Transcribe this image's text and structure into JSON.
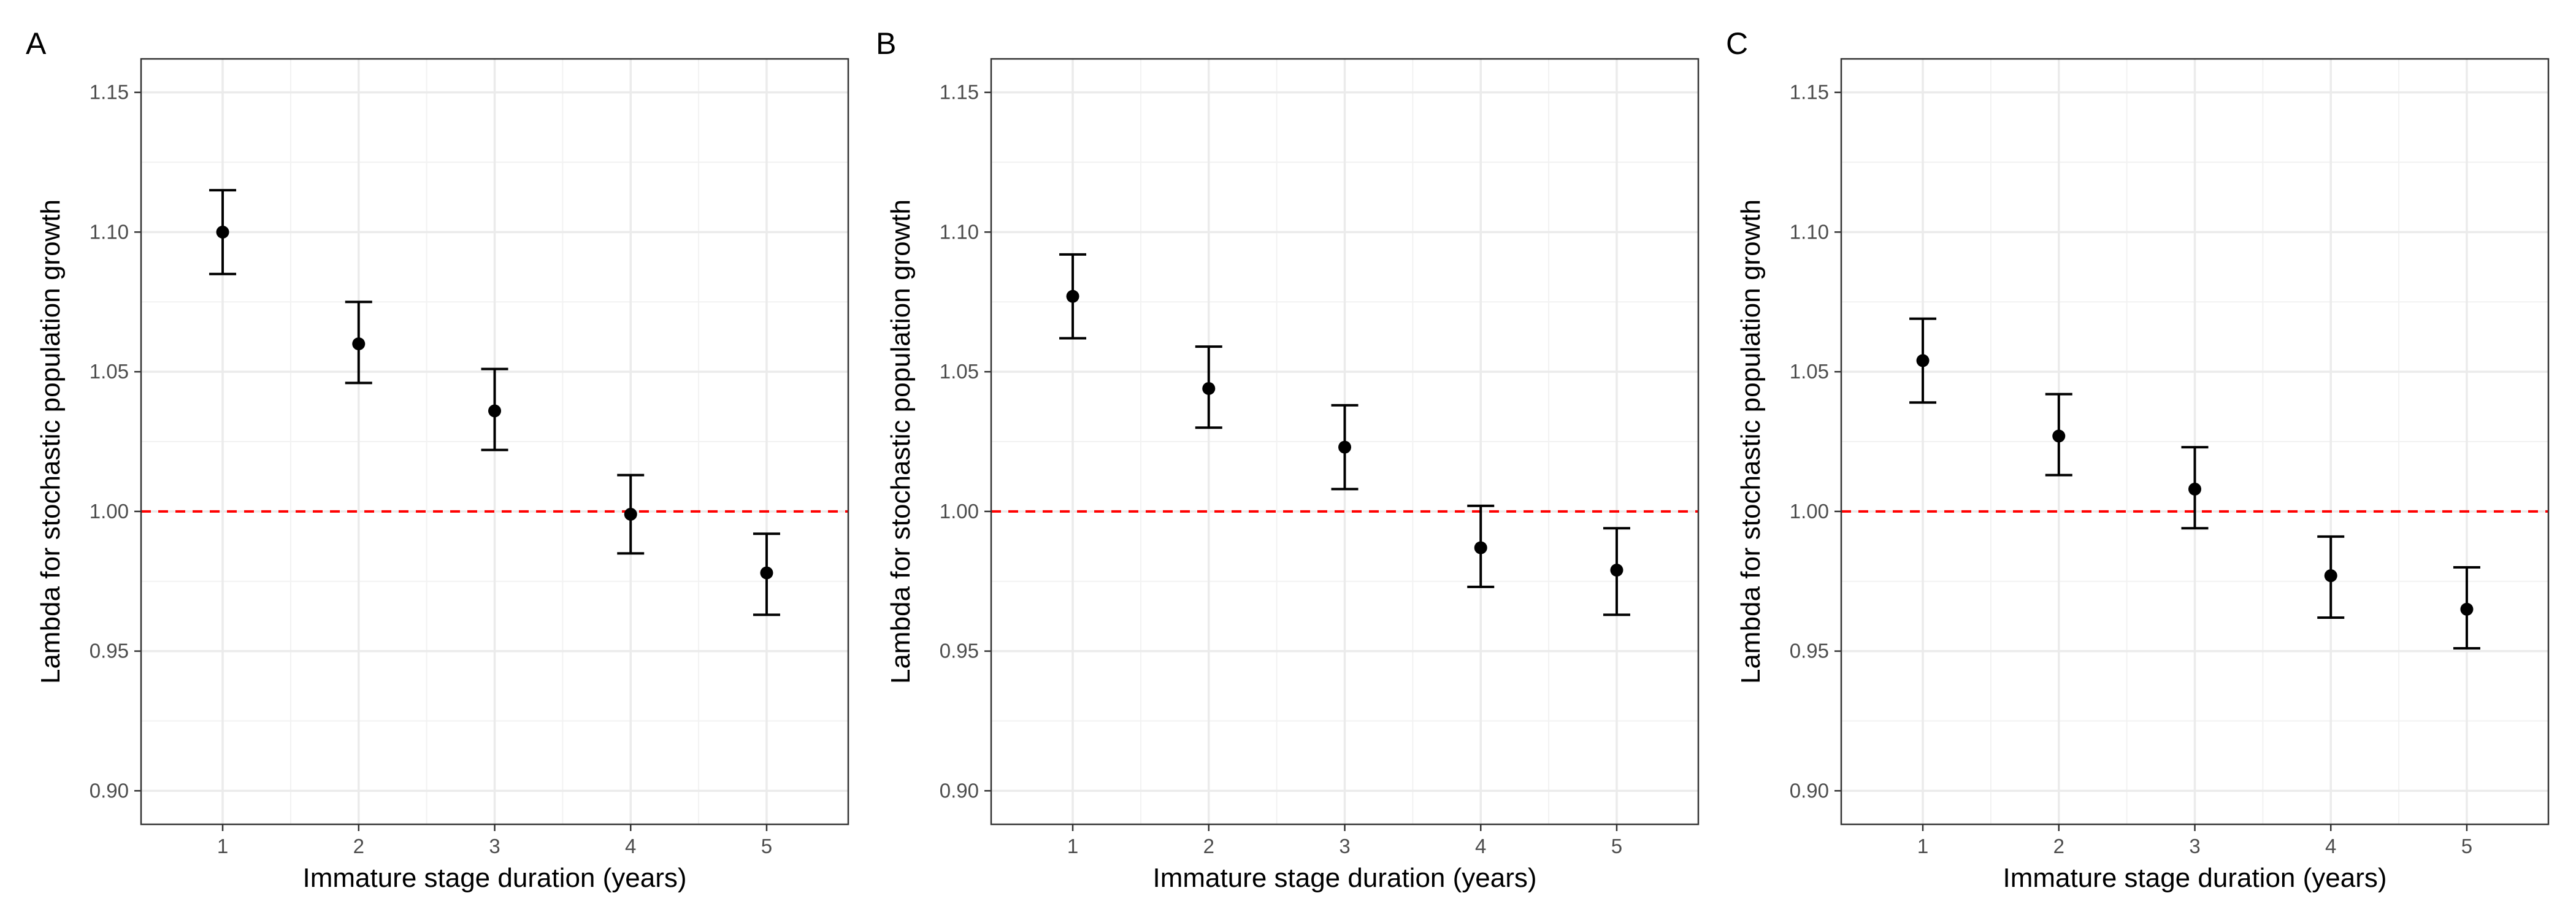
{
  "chart_data": [
    {
      "panel": "A",
      "type": "scatter",
      "xlabel": "Immature stage duration (years)",
      "ylabel": "Lambda for stochastic population growth",
      "x": [
        1,
        2,
        3,
        4,
        5
      ],
      "y": [
        1.1,
        1.06,
        1.036,
        0.999,
        0.978
      ],
      "error_low": [
        1.085,
        1.046,
        1.022,
        0.985,
        0.963
      ],
      "error_high": [
        1.115,
        1.075,
        1.051,
        1.013,
        0.992
      ],
      "xlim": [
        0.4,
        5.6
      ],
      "ylim": [
        0.888,
        1.162
      ],
      "xticks": [
        "1",
        "2",
        "3",
        "4",
        "5"
      ],
      "yticks": [
        "0.90",
        "0.95",
        "1.00",
        "1.05",
        "1.10",
        "1.15"
      ],
      "reference_line": {
        "y": 1.0,
        "style": "dashed",
        "color": "#ff0000"
      },
      "grid": true
    },
    {
      "panel": "B",
      "type": "scatter",
      "xlabel": "Immature stage duration (years)",
      "ylabel": "Lambda for stochastic population growth",
      "x": [
        1,
        2,
        3,
        4,
        5
      ],
      "y": [
        1.077,
        1.044,
        1.023,
        0.987,
        0.979
      ],
      "error_low": [
        1.062,
        1.03,
        1.008,
        0.973,
        0.963
      ],
      "error_high": [
        1.092,
        1.059,
        1.038,
        1.002,
        0.994
      ],
      "xlim": [
        0.4,
        5.6
      ],
      "ylim": [
        0.888,
        1.162
      ],
      "xticks": [
        "1",
        "2",
        "3",
        "4",
        "5"
      ],
      "yticks": [
        "0.90",
        "0.95",
        "1.00",
        "1.05",
        "1.10",
        "1.15"
      ],
      "reference_line": {
        "y": 1.0,
        "style": "dashed",
        "color": "#ff0000"
      },
      "grid": true
    },
    {
      "panel": "C",
      "type": "scatter",
      "xlabel": "Immature stage duration (years)",
      "ylabel": "Lambda for stochastic population growth",
      "x": [
        1,
        2,
        3,
        4,
        5
      ],
      "y": [
        1.054,
        1.027,
        1.008,
        0.977,
        0.965
      ],
      "error_low": [
        1.039,
        1.013,
        0.994,
        0.962,
        0.951
      ],
      "error_high": [
        1.069,
        1.042,
        1.023,
        0.991,
        0.98
      ],
      "xlim": [
        0.4,
        5.6
      ],
      "ylim": [
        0.888,
        1.162
      ],
      "xticks": [
        "1",
        "2",
        "3",
        "4",
        "5"
      ],
      "yticks": [
        "0.90",
        "0.95",
        "1.00",
        "1.05",
        "1.10",
        "1.15"
      ],
      "reference_line": {
        "y": 1.0,
        "style": "dashed",
        "color": "#ff0000"
      },
      "grid": true
    }
  ],
  "colors": {
    "points": "#000000",
    "errorbars": "#000000",
    "reference_line": "#ff0000",
    "grid_major": "#ebebeb",
    "grid_minor": "#f2f2f2",
    "panel_border": "#333333",
    "tick_text": "#4d4d4d"
  }
}
